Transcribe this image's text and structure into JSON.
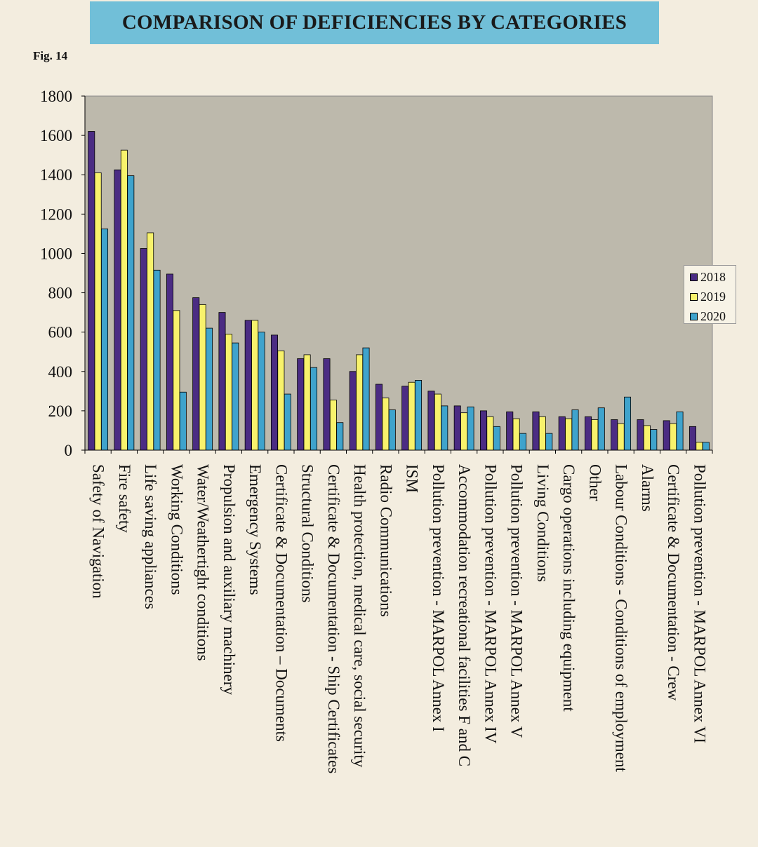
{
  "header": {
    "title": "COMPARISON OF DEFICIENCIES BY CATEGORIES",
    "fig_label": "Fig. 14"
  },
  "colors": {
    "page_background": "#f3eddf",
    "title_banner": "#71bfd8",
    "plot_area": "#bdb9ac",
    "series_2018": "#4b2c83",
    "series_2019": "#f8f26c",
    "series_2020": "#3fa3cc"
  },
  "chart_data": {
    "type": "bar",
    "title": "COMPARISON OF DEFICIENCIES BY CATEGORIES",
    "xlabel": "",
    "ylabel": "",
    "ylim": [
      0,
      1800
    ],
    "yticks": [
      0,
      200,
      400,
      600,
      800,
      1000,
      1200,
      1400,
      1600,
      1800
    ],
    "grid": false,
    "legend_position": "right",
    "categories": [
      "Safety of Navigation",
      "Fire safety",
      "Life saving appliances",
      "Working Conditions",
      "Water/Weathertight conditions",
      "Propulsion and auxiliary machinery",
      "Emergency Systems",
      "Certificate & Documentation – Documents",
      "Structural Conditions",
      "Certificate & Documentation - Ship Certificates",
      "Health protection, medical care, social security",
      "Radio Communications",
      "ISM",
      "Pollution prevention - MARPOL Annex I",
      "Accommodation recreational facilities F and C",
      "Pollution prevention - MARPOL Annex IV",
      "Pollution prevention - MARPOL Annex V",
      "Living Conditions",
      "Cargo operations including equipment",
      "Other",
      "Labour Conditions - Conditions of employment",
      "Alarms",
      "Certificate & Documentation - Crew",
      "Pollution prevention - MARPOL Annex VI"
    ],
    "series": [
      {
        "name": "2018",
        "color": "#4b2c83",
        "values": [
          1620,
          1425,
          1025,
          895,
          775,
          700,
          660,
          585,
          465,
          465,
          400,
          335,
          325,
          300,
          225,
          200,
          195,
          195,
          170,
          170,
          155,
          155,
          150,
          120
        ]
      },
      {
        "name": "2019",
        "color": "#f8f26c",
        "values": [
          1410,
          1525,
          1105,
          710,
          740,
          590,
          660,
          505,
          485,
          255,
          485,
          265,
          345,
          285,
          190,
          170,
          160,
          170,
          160,
          155,
          135,
          125,
          135,
          40
        ]
      },
      {
        "name": "2020",
        "color": "#3fa3cc",
        "values": [
          1125,
          1395,
          915,
          295,
          620,
          545,
          600,
          285,
          420,
          140,
          520,
          205,
          355,
          225,
          220,
          120,
          85,
          85,
          205,
          215,
          270,
          105,
          195,
          40
        ]
      }
    ]
  }
}
